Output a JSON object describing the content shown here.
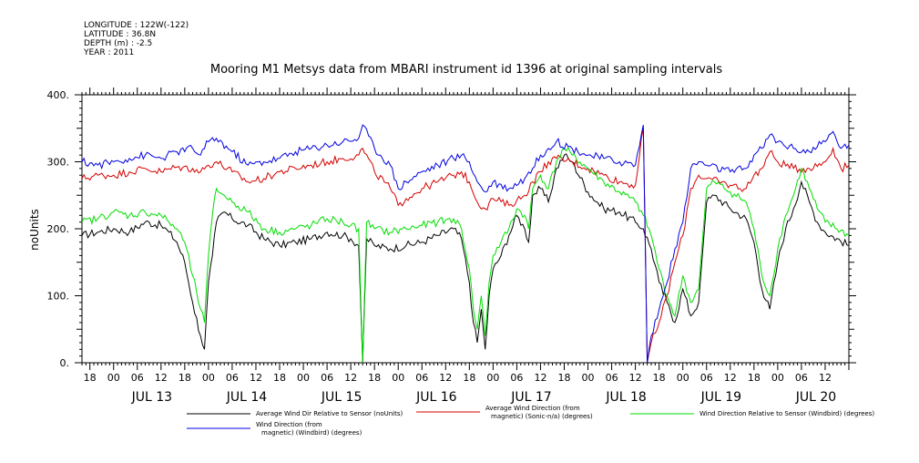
{
  "header": {
    "longitude": "LONGITUDE : 122W(-122)",
    "latitude": "LATITUDE : 36.8N",
    "depth": "DEPTH (m) : -2.5",
    "year": "YEAR : 2011"
  },
  "chart_data": {
    "type": "line",
    "title": "Mooring M1 Metsys data from MBARI instrument id 1396 at original sampling intervals",
    "ylabel": "noUnits",
    "ylim": [
      0,
      400
    ],
    "yticks": [
      0,
      100,
      200,
      300,
      400
    ],
    "xlim_hours": [
      -8,
      186
    ],
    "x_hour_labels": [
      "18",
      "00",
      "06",
      "12",
      "18",
      "00",
      "06",
      "12",
      "18",
      "00",
      "06",
      "12",
      "18",
      "00",
      "06",
      "12",
      "18",
      "00",
      "06",
      "12",
      "18",
      "00",
      "06",
      "12",
      "18",
      "00",
      "06",
      "12",
      "18",
      "00",
      "06",
      "12"
    ],
    "x_date_labels": [
      "JUL 13",
      "JUL 14",
      "JUL 15",
      "JUL 16",
      "JUL 17",
      "JUL 18",
      "JUL 19",
      "JUL 20"
    ],
    "legend": [
      {
        "label_lines": [
          "Average Wind Dir Relative to Sensor (noUnits)"
        ],
        "color": "#000000"
      },
      {
        "label_lines": [
          "Average Wind Direction (from",
          "magnetic) (Sonic-n/a) (degrees)"
        ],
        "color": "#d40000"
      },
      {
        "label_lines": [
          "Wind Direction Relative to Sensor (Windbird) (degrees)"
        ],
        "color": "#00dd00"
      },
      {
        "label_lines": [
          "Wind Direction (from",
          "magnetic) (Windbird) (degrees)"
        ],
        "color": "#0000e0"
      }
    ],
    "series": [
      {
        "name": "Average Wind Dir Relative to Sensor (noUnits)",
        "color": "#000000",
        "points": [
          [
            -8,
            190
          ],
          [
            -4,
            195
          ],
          [
            0,
            200
          ],
          [
            4,
            195
          ],
          [
            8,
            210
          ],
          [
            12,
            205
          ],
          [
            14,
            195
          ],
          [
            16,
            180
          ],
          [
            18,
            150
          ],
          [
            20,
            90
          ],
          [
            22,
            40
          ],
          [
            23,
            20
          ],
          [
            24,
            120
          ],
          [
            25,
            160
          ],
          [
            26,
            210
          ],
          [
            28,
            225
          ],
          [
            30,
            215
          ],
          [
            34,
            205
          ],
          [
            38,
            185
          ],
          [
            42,
            175
          ],
          [
            46,
            180
          ],
          [
            50,
            185
          ],
          [
            54,
            195
          ],
          [
            58,
            190
          ],
          [
            60,
            185
          ],
          [
            62,
            175
          ],
          [
            63,
            0
          ],
          [
            64,
            185
          ],
          [
            66,
            175
          ],
          [
            70,
            170
          ],
          [
            74,
            175
          ],
          [
            78,
            180
          ],
          [
            82,
            190
          ],
          [
            86,
            200
          ],
          [
            88,
            185
          ],
          [
            90,
            120
          ],
          [
            91,
            60
          ],
          [
            92,
            30
          ],
          [
            93,
            80
          ],
          [
            94,
            20
          ],
          [
            95,
            100
          ],
          [
            96,
            140
          ],
          [
            98,
            160
          ],
          [
            100,
            190
          ],
          [
            102,
            220
          ],
          [
            104,
            200
          ],
          [
            105,
            180
          ],
          [
            106,
            250
          ],
          [
            108,
            260
          ],
          [
            110,
            240
          ],
          [
            112,
            290
          ],
          [
            114,
            310
          ],
          [
            116,
            300
          ],
          [
            120,
            255
          ],
          [
            124,
            230
          ],
          [
            128,
            225
          ],
          [
            132,
            210
          ],
          [
            134,
            200
          ],
          [
            136,
            170
          ],
          [
            138,
            120
          ],
          [
            140,
            90
          ],
          [
            142,
            60
          ],
          [
            144,
            110
          ],
          [
            146,
            70
          ],
          [
            148,
            90
          ],
          [
            150,
            240
          ],
          [
            152,
            250
          ],
          [
            156,
            230
          ],
          [
            160,
            215
          ],
          [
            162,
            180
          ],
          [
            164,
            110
          ],
          [
            166,
            80
          ],
          [
            168,
            150
          ],
          [
            170,
            200
          ],
          [
            172,
            230
          ],
          [
            174,
            270
          ],
          [
            176,
            240
          ],
          [
            178,
            210
          ],
          [
            180,
            195
          ],
          [
            186,
            175
          ]
        ]
      },
      {
        "name": "Average Wind Direction (from magnetic) (Sonic-n/a) (degrees)",
        "color": "#d40000",
        "points": [
          [
            -8,
            275
          ],
          [
            -4,
            280
          ],
          [
            0,
            280
          ],
          [
            4,
            285
          ],
          [
            8,
            290
          ],
          [
            12,
            285
          ],
          [
            16,
            292
          ],
          [
            20,
            290
          ],
          [
            22,
            285
          ],
          [
            24,
            295
          ],
          [
            26,
            300
          ],
          [
            30,
            285
          ],
          [
            34,
            270
          ],
          [
            38,
            275
          ],
          [
            42,
            285
          ],
          [
            46,
            290
          ],
          [
            50,
            295
          ],
          [
            54,
            300
          ],
          [
            58,
            305
          ],
          [
            62,
            310
          ],
          [
            63,
            320
          ],
          [
            66,
            285
          ],
          [
            70,
            260
          ],
          [
            72,
            235
          ],
          [
            74,
            245
          ],
          [
            78,
            260
          ],
          [
            82,
            270
          ],
          [
            86,
            280
          ],
          [
            88,
            285
          ],
          [
            90,
            270
          ],
          [
            92,
            240
          ],
          [
            94,
            230
          ],
          [
            96,
            245
          ],
          [
            100,
            235
          ],
          [
            104,
            250
          ],
          [
            106,
            270
          ],
          [
            108,
            285
          ],
          [
            110,
            300
          ],
          [
            112,
            305
          ],
          [
            116,
            300
          ],
          [
            120,
            290
          ],
          [
            124,
            280
          ],
          [
            128,
            270
          ],
          [
            132,
            265
          ],
          [
            134,
            350
          ],
          [
            135,
            0
          ],
          [
            136,
            30
          ],
          [
            138,
            60
          ],
          [
            140,
            100
          ],
          [
            142,
            150
          ],
          [
            144,
            190
          ],
          [
            146,
            260
          ],
          [
            148,
            280
          ],
          [
            150,
            275
          ],
          [
            156,
            265
          ],
          [
            160,
            260
          ],
          [
            162,
            280
          ],
          [
            164,
            290
          ],
          [
            166,
            315
          ],
          [
            168,
            300
          ],
          [
            172,
            290
          ],
          [
            176,
            290
          ],
          [
            180,
            300
          ],
          [
            182,
            320
          ],
          [
            184,
            290
          ],
          [
            186,
            295
          ]
        ]
      },
      {
        "name": "Wind Direction Relative to Sensor (Windbird) (degrees)",
        "color": "#00dd00",
        "points": [
          [
            -8,
            210
          ],
          [
            -4,
            215
          ],
          [
            0,
            225
          ],
          [
            4,
            220
          ],
          [
            8,
            225
          ],
          [
            12,
            220
          ],
          [
            14,
            210
          ],
          [
            16,
            200
          ],
          [
            18,
            180
          ],
          [
            20,
            130
          ],
          [
            22,
            80
          ],
          [
            23,
            60
          ],
          [
            24,
            160
          ],
          [
            25,
            220
          ],
          [
            26,
            260
          ],
          [
            28,
            250
          ],
          [
            30,
            240
          ],
          [
            34,
            225
          ],
          [
            38,
            200
          ],
          [
            42,
            195
          ],
          [
            46,
            200
          ],
          [
            50,
            205
          ],
          [
            54,
            215
          ],
          [
            58,
            210
          ],
          [
            60,
            205
          ],
          [
            62,
            200
          ],
          [
            63,
            0
          ],
          [
            64,
            210
          ],
          [
            66,
            200
          ],
          [
            70,
            195
          ],
          [
            74,
            200
          ],
          [
            78,
            205
          ],
          [
            82,
            210
          ],
          [
            86,
            215
          ],
          [
            88,
            200
          ],
          [
            90,
            140
          ],
          [
            91,
            80
          ],
          [
            92,
            50
          ],
          [
            93,
            100
          ],
          [
            94,
            40
          ],
          [
            95,
            120
          ],
          [
            96,
            160
          ],
          [
            98,
            180
          ],
          [
            100,
            200
          ],
          [
            102,
            230
          ],
          [
            104,
            220
          ],
          [
            105,
            200
          ],
          [
            106,
            260
          ],
          [
            108,
            280
          ],
          [
            110,
            260
          ],
          [
            112,
            300
          ],
          [
            114,
            320
          ],
          [
            116,
            310
          ],
          [
            120,
            290
          ],
          [
            124,
            270
          ],
          [
            128,
            255
          ],
          [
            132,
            240
          ],
          [
            134,
            220
          ],
          [
            136,
            190
          ],
          [
            138,
            140
          ],
          [
            140,
            100
          ],
          [
            142,
            70
          ],
          [
            144,
            130
          ],
          [
            146,
            90
          ],
          [
            148,
            110
          ],
          [
            150,
            260
          ],
          [
            152,
            270
          ],
          [
            156,
            255
          ],
          [
            160,
            240
          ],
          [
            162,
            200
          ],
          [
            164,
            130
          ],
          [
            166,
            100
          ],
          [
            168,
            170
          ],
          [
            170,
            220
          ],
          [
            172,
            250
          ],
          [
            174,
            290
          ],
          [
            176,
            260
          ],
          [
            178,
            230
          ],
          [
            180,
            210
          ],
          [
            186,
            190
          ]
        ]
      },
      {
        "name": "Wind Direction (from magnetic) (Windbird) (degrees)",
        "color": "#0000e0",
        "points": [
          [
            -8,
            300
          ],
          [
            -4,
            295
          ],
          [
            0,
            300
          ],
          [
            4,
            305
          ],
          [
            8,
            310
          ],
          [
            12,
            305
          ],
          [
            16,
            315
          ],
          [
            20,
            320
          ],
          [
            22,
            310
          ],
          [
            24,
            330
          ],
          [
            26,
            335
          ],
          [
            30,
            315
          ],
          [
            34,
            295
          ],
          [
            38,
            300
          ],
          [
            42,
            305
          ],
          [
            46,
            315
          ],
          [
            50,
            320
          ],
          [
            54,
            325
          ],
          [
            58,
            330
          ],
          [
            62,
            335
          ],
          [
            63,
            355
          ],
          [
            66,
            320
          ],
          [
            70,
            295
          ],
          [
            72,
            260
          ],
          [
            74,
            270
          ],
          [
            78,
            285
          ],
          [
            82,
            295
          ],
          [
            86,
            305
          ],
          [
            88,
            310
          ],
          [
            90,
            300
          ],
          [
            92,
            270
          ],
          [
            94,
            255
          ],
          [
            96,
            270
          ],
          [
            100,
            260
          ],
          [
            104,
            275
          ],
          [
            106,
            290
          ],
          [
            108,
            310
          ],
          [
            110,
            320
          ],
          [
            112,
            330
          ],
          [
            116,
            320
          ],
          [
            120,
            310
          ],
          [
            124,
            305
          ],
          [
            128,
            300
          ],
          [
            132,
            295
          ],
          [
            134,
            355
          ],
          [
            135,
            0
          ],
          [
            136,
            40
          ],
          [
            138,
            80
          ],
          [
            140,
            120
          ],
          [
            142,
            170
          ],
          [
            144,
            210
          ],
          [
            146,
            290
          ],
          [
            148,
            300
          ],
          [
            150,
            295
          ],
          [
            156,
            285
          ],
          [
            160,
            290
          ],
          [
            162,
            310
          ],
          [
            164,
            320
          ],
          [
            166,
            340
          ],
          [
            168,
            330
          ],
          [
            172,
            320
          ],
          [
            176,
            315
          ],
          [
            180,
            330
          ],
          [
            182,
            345
          ],
          [
            184,
            320
          ],
          [
            186,
            325
          ]
        ]
      }
    ]
  }
}
